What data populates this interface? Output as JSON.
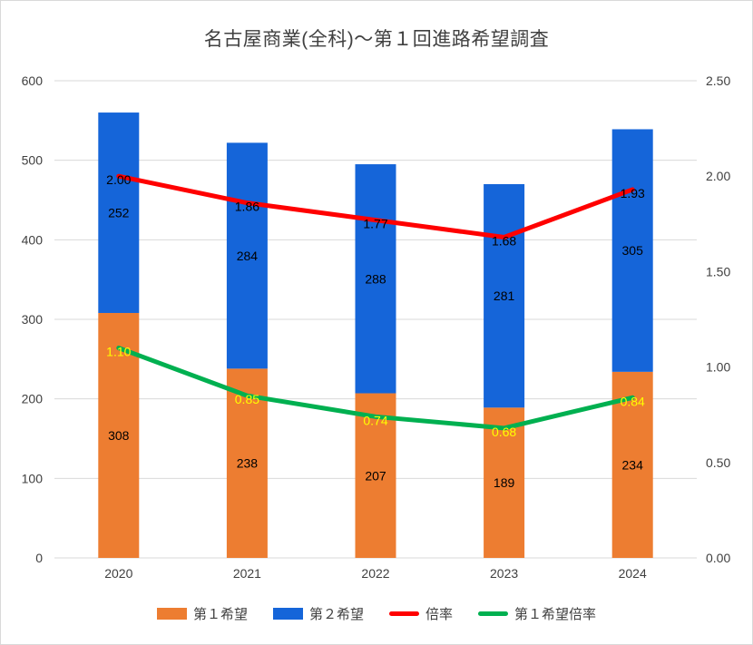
{
  "chart_data": {
    "type": "bar",
    "subtype": "stacked-bar-with-lines",
    "title": "名古屋商業(全科)～第１回進路希望調査",
    "categories": [
      "2020",
      "2021",
      "2022",
      "2023",
      "2024"
    ],
    "bar_series": [
      {
        "name": "第１希望",
        "color": "#ED7D31",
        "axis": "left",
        "values": [
          308,
          238,
          207,
          189,
          234
        ],
        "label_color": "#000000"
      },
      {
        "name": "第２希望",
        "color": "#1565D9",
        "axis": "left",
        "values": [
          252,
          284,
          288,
          281,
          305
        ],
        "label_color": "#000000"
      }
    ],
    "line_series": [
      {
        "name": "倍率",
        "color": "#FF0000",
        "axis": "right",
        "values": [
          2.0,
          1.86,
          1.77,
          1.68,
          1.93
        ],
        "labels": [
          "2.00",
          "1.86",
          "1.77",
          "1.68",
          "1.93"
        ],
        "label_color": "#000000"
      },
      {
        "name": "第１希望倍率",
        "color": "#00B050",
        "axis": "right",
        "values": [
          1.1,
          0.85,
          0.74,
          0.68,
          0.84
        ],
        "labels": [
          "1.10",
          "0.85",
          "0.74",
          "0.68",
          "0.84"
        ],
        "label_color": "#FFFF00"
      }
    ],
    "left_axis": {
      "min": 0,
      "max": 600,
      "step": 100,
      "tick_labels": [
        "0",
        "100",
        "200",
        "300",
        "400",
        "500",
        "600"
      ]
    },
    "right_axis": {
      "min": 0,
      "max": 2.5,
      "step": 0.5,
      "tick_labels": [
        "0.00",
        "0.50",
        "1.00",
        "1.50",
        "2.00",
        "2.50"
      ]
    },
    "legend_position": "bottom",
    "grid": true
  },
  "colors": {
    "grid": "#D9D9D9",
    "axis_text": "#404040",
    "title_text": "#404040",
    "background": "#FFFFFF"
  }
}
